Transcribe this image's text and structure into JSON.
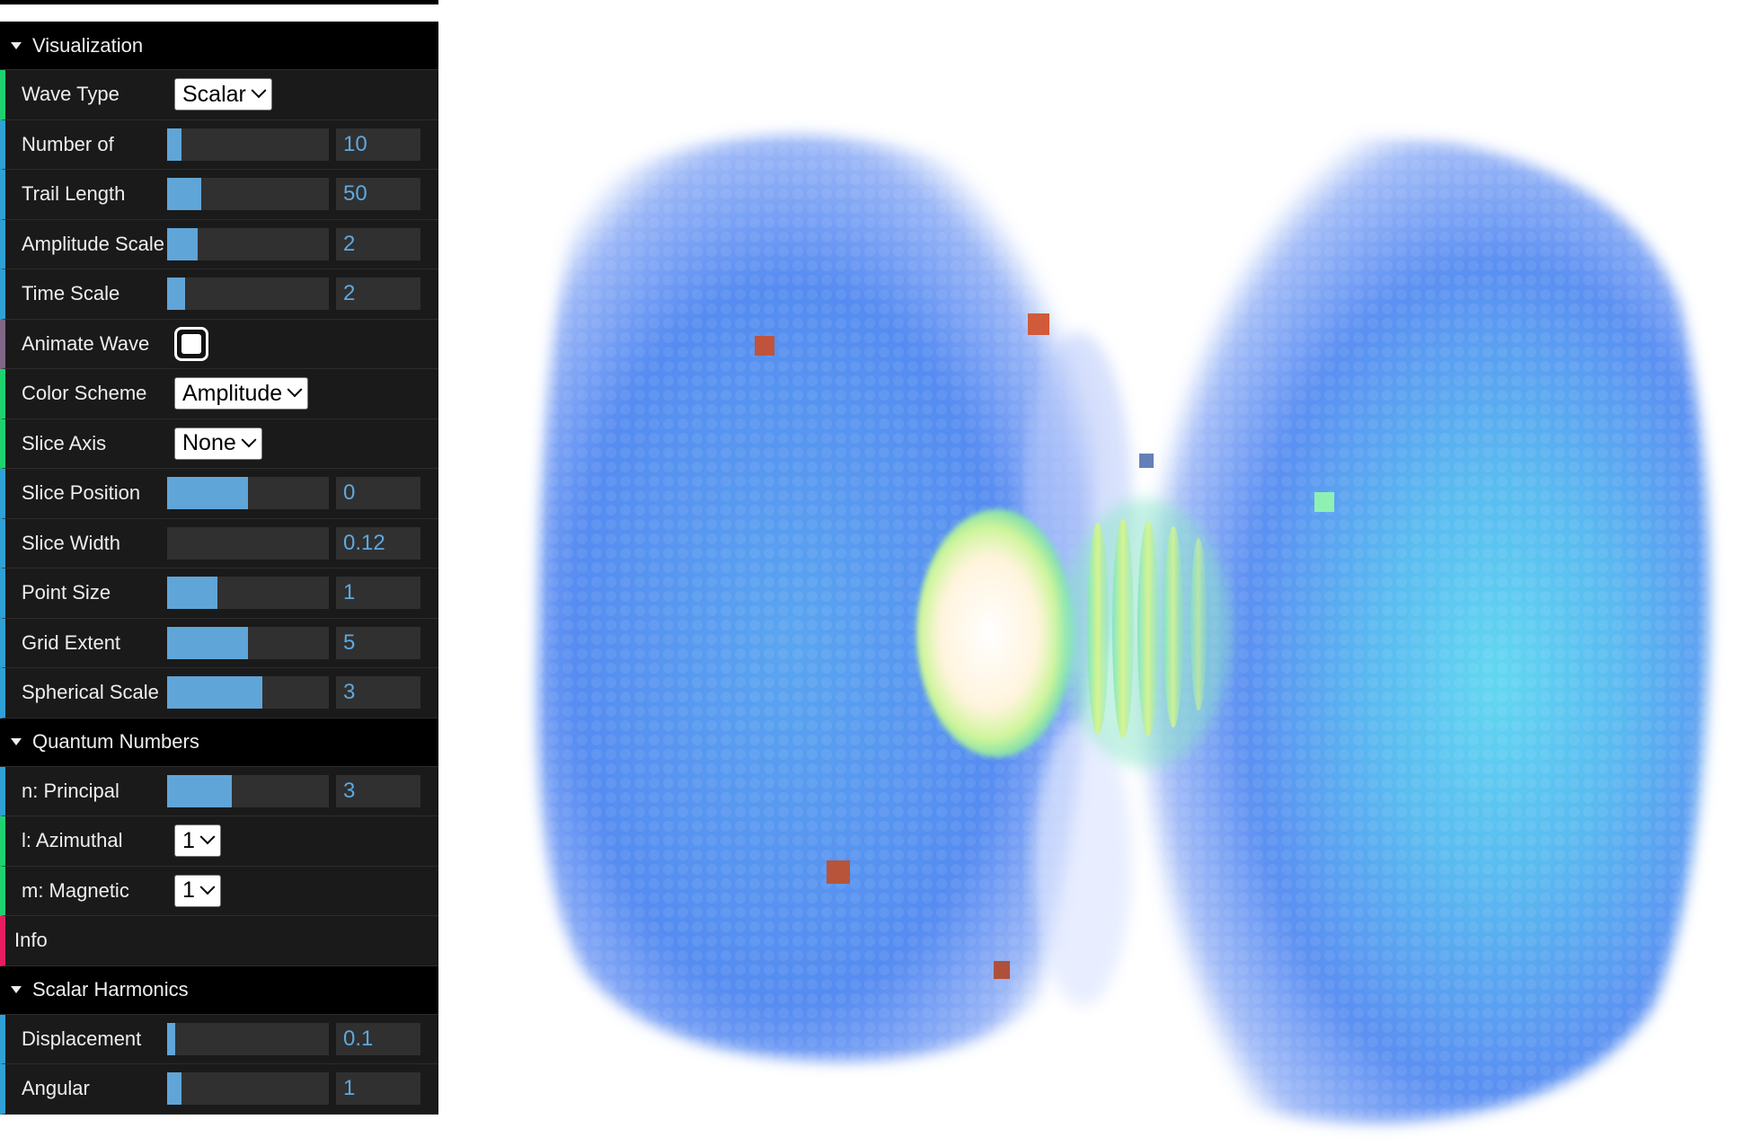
{
  "gui": {
    "folders": [
      {
        "title": "Visualization",
        "controls": [
          {
            "type": "select",
            "label": "Wave Type",
            "value": "Scalar"
          },
          {
            "type": "number",
            "label": "Number of",
            "value": "10",
            "fill": 0.09
          },
          {
            "type": "number",
            "label": "Trail Length",
            "value": "50",
            "fill": 0.21
          },
          {
            "type": "number",
            "label": "Amplitude Scale",
            "value": "2",
            "fill": 0.19
          },
          {
            "type": "number",
            "label": "Time Scale",
            "value": "2",
            "fill": 0.11
          },
          {
            "type": "bool",
            "label": "Animate Wave",
            "value": "checked"
          },
          {
            "type": "select",
            "label": "Color Scheme",
            "value": "Amplitude"
          },
          {
            "type": "select",
            "label": "Slice Axis",
            "value": "None"
          },
          {
            "type": "number",
            "label": "Slice Position",
            "value": "0",
            "fill": 0.5
          },
          {
            "type": "number",
            "label": "Slice Width",
            "value": "0.12",
            "fill": 0.0
          },
          {
            "type": "number",
            "label": "Point Size",
            "value": "1",
            "fill": 0.31
          },
          {
            "type": "number",
            "label": "Grid Extent",
            "value": "5",
            "fill": 0.5
          },
          {
            "type": "number",
            "label": "Spherical Scale",
            "value": "3",
            "fill": 0.59
          }
        ]
      },
      {
        "title": "Quantum Numbers",
        "controls": [
          {
            "type": "number",
            "label": "n: Principal",
            "value": "3",
            "fill": 0.4
          },
          {
            "type": "select",
            "label": "l: Azimuthal",
            "value": "1"
          },
          {
            "type": "select",
            "label": "m: Magnetic",
            "value": "1"
          },
          {
            "type": "info",
            "label": "Info"
          }
        ]
      },
      {
        "title": "Scalar Harmonics",
        "controls": [
          {
            "type": "number",
            "label": "Displacement",
            "value": "0.1",
            "fill": 0.05
          },
          {
            "type": "number",
            "label": "Angular",
            "value": "1",
            "fill": 0.09
          }
        ]
      }
    ]
  },
  "viewport": {
    "lobe_color": "#4d86f0",
    "core_color": "#fff6e0",
    "ring_color": "#b8f06c",
    "marker_color": "#c0533c"
  }
}
